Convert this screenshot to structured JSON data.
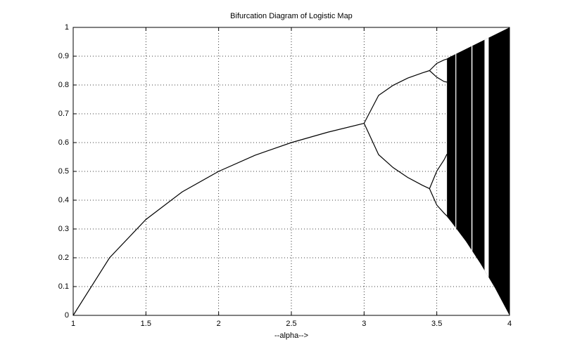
{
  "chart_data": {
    "type": "bifurcation",
    "title": "Bifurcation Diagram of Logistic Map",
    "x_label": "--alpha-->",
    "color": "#000000",
    "grid": true,
    "xlim": [
      1,
      4
    ],
    "ylim": [
      0,
      1
    ],
    "xticks": [
      1,
      1.5,
      2,
      2.5,
      3,
      3.5,
      4
    ],
    "yticks": [
      0,
      0.1,
      0.2,
      0.3,
      0.4,
      0.5,
      0.6,
      0.7,
      0.8,
      0.9,
      1
    ],
    "series": [
      {
        "x": [
          1,
          1.25,
          1.5,
          1.75,
          2,
          2.25,
          2.5,
          2.75,
          3
        ],
        "values": [
          0,
          0.2,
          0.333,
          0.429,
          0.5,
          0.556,
          0.6,
          0.636,
          0.667
        ]
      },
      {
        "x": [
          3,
          3.1,
          3.2,
          3.3,
          3.4,
          3.45
        ],
        "values": [
          0.667,
          0.764,
          0.799,
          0.824,
          0.842,
          0.85
        ]
      },
      {
        "x": [
          3,
          3.1,
          3.2,
          3.3,
          3.4,
          3.45
        ],
        "values": [
          0.667,
          0.558,
          0.513,
          0.479,
          0.452,
          0.44
        ]
      },
      {
        "x": [
          3.45,
          3.5,
          3.55,
          3.57
        ],
        "values": [
          0.85,
          0.875,
          0.887,
          0.89
        ]
      },
      {
        "x": [
          3.45,
          3.5,
          3.55,
          3.57
        ],
        "values": [
          0.85,
          0.827,
          0.812,
          0.81
        ]
      },
      {
        "x": [
          3.45,
          3.5,
          3.55,
          3.57
        ],
        "values": [
          0.44,
          0.501,
          0.54,
          0.56
        ]
      },
      {
        "x": [
          3.45,
          3.5,
          3.55,
          3.57
        ],
        "values": [
          0.44,
          0.383,
          0.355,
          0.345
        ]
      }
    ],
    "chaos": {
      "x": [
        3.57,
        3.6,
        3.7,
        3.8,
        3.9,
        4
      ],
      "upper": [
        0.8925,
        0.9,
        0.925,
        0.95,
        0.975,
        1
      ],
      "lower": [
        0.3426,
        0.324,
        0.257,
        0.18,
        0.095,
        0
      ],
      "windows": [
        [
          3.628,
          3.634
        ],
        [
          3.738,
          3.745
        ],
        [
          3.828,
          3.857
        ]
      ]
    }
  }
}
